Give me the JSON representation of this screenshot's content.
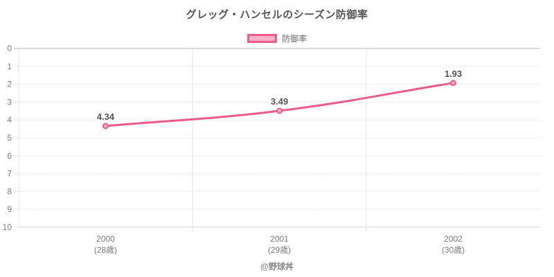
{
  "title": "グレッグ・ハンセルのシーズン防御率",
  "legend": {
    "label": "防御率"
  },
  "footer": "@野球丼",
  "colors": {
    "line": "#EE5A87",
    "point_fill": "#F8AEC6",
    "legend_fill": "#F8B1C8",
    "grid": "#E4E4E4",
    "zero_line": "#B5B5B5",
    "axis_bottom": "#D4D4D4",
    "tick_text": "#7A7A7A",
    "point_label_text": "#555555",
    "title_text": "#565656",
    "footer_text": "#878787",
    "legend_text": "#666666"
  },
  "chart_data": {
    "type": "line",
    "title": "グレッグ・ハンセルのシーズン防御率",
    "categories": [
      "2000",
      "2001",
      "2002"
    ],
    "category_sublabels": [
      "(28歳)",
      "(29歳)",
      "(30歳)"
    ],
    "series": [
      {
        "name": "防御率",
        "values": [
          4.34,
          3.49,
          1.93
        ]
      }
    ],
    "point_labels": [
      "4.34",
      "3.49",
      "1.93"
    ],
    "xlabel": "",
    "ylabel": "",
    "ylim": [
      0,
      10
    ],
    "y_ticks": [
      0,
      1,
      2,
      3,
      4,
      5,
      6,
      7,
      8,
      9,
      10
    ],
    "y_axis_reversed": true,
    "grid": true,
    "legend_position": "top",
    "curve_tension": 0.4
  }
}
